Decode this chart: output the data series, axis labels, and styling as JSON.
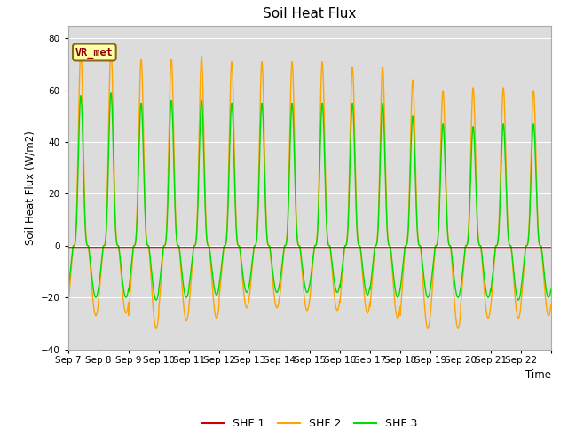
{
  "title": "Soil Heat Flux",
  "ylabel": "Soil Heat Flux (W/m2)",
  "xlabel": "Time",
  "ylim": [
    -40,
    85
  ],
  "yticks": [
    -40,
    -20,
    0,
    20,
    40,
    60,
    80
  ],
  "bg_color": "#dcdcdc",
  "fig_color": "#ffffff",
  "shf1_color": "#cc0000",
  "shf2_color": "#ffa500",
  "shf3_color": "#00dd00",
  "vr_met_label": "VR_met",
  "x_tick_labels": [
    "Sep 7",
    "Sep 8",
    "Sep 9",
    "Sep 10",
    "Sep 11",
    "Sep 12",
    "Sep 13",
    "Sep 14",
    "Sep 15",
    "Sep 16",
    "Sep 17",
    "Sep 18",
    "Sep 19",
    "Sep 20",
    "Sep 21",
    "Sep 22"
  ],
  "n_days": 16,
  "points_per_day": 288,
  "shf2_day_peak": [
    75,
    76,
    72,
    72,
    73,
    71,
    71,
    71,
    71,
    69,
    69,
    64,
    60,
    61,
    61,
    60
  ],
  "shf2_night_trough": [
    -27,
    -26,
    -32,
    -29,
    -28,
    -24,
    -24,
    -25,
    -25,
    -26,
    -28,
    -32,
    -32,
    -28,
    -28,
    -27
  ],
  "shf3_day_peak": [
    58,
    59,
    55,
    56,
    56,
    55,
    55,
    55,
    55,
    55,
    55,
    50,
    47,
    46,
    47,
    47
  ],
  "shf3_night_trough": [
    -20,
    -20,
    -21,
    -20,
    -19,
    -18,
    -18,
    -18,
    -18,
    -19,
    -20,
    -20,
    -20,
    -20,
    -21,
    -20
  ]
}
